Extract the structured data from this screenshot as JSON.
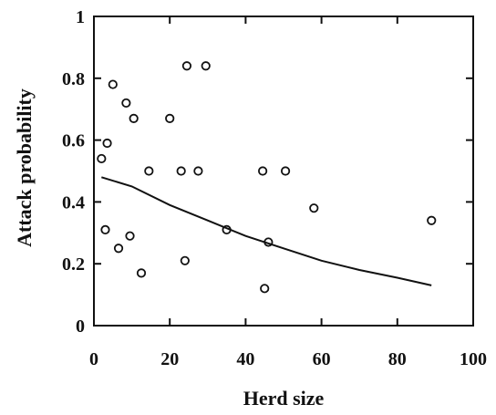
{
  "chart_data": {
    "type": "scatter",
    "title": "",
    "xlabel": "Herd size",
    "ylabel": "Attack probability",
    "xlim": [
      0,
      100
    ],
    "ylim": [
      0,
      1
    ],
    "x_ticks": [
      {
        "value": 0,
        "label": "0"
      },
      {
        "value": 20,
        "label": "20"
      },
      {
        "value": 40,
        "label": "40"
      },
      {
        "value": 60,
        "label": "60"
      },
      {
        "value": 80,
        "label": "80"
      },
      {
        "value": 100,
        "label": "100"
      }
    ],
    "y_ticks": [
      {
        "value": 0,
        "label": "0"
      },
      {
        "value": 0.2,
        "label": "0.2"
      },
      {
        "value": 0.4,
        "label": "0.4"
      },
      {
        "value": 0.6,
        "label": "0.6"
      },
      {
        "value": 0.8,
        "label": "0.8"
      },
      {
        "value": 1,
        "label": "1"
      }
    ],
    "grid": false,
    "legend": "none",
    "series": [
      {
        "kind": "points",
        "marker": "open-circle",
        "color": "#111111",
        "points": [
          {
            "x": 2,
            "y": 0.54
          },
          {
            "x": 3,
            "y": 0.31
          },
          {
            "x": 3.5,
            "y": 0.59
          },
          {
            "x": 5,
            "y": 0.78
          },
          {
            "x": 6.5,
            "y": 0.25
          },
          {
            "x": 8.5,
            "y": 0.72
          },
          {
            "x": 9.5,
            "y": 0.29
          },
          {
            "x": 10.5,
            "y": 0.67
          },
          {
            "x": 12.5,
            "y": 0.17
          },
          {
            "x": 14.5,
            "y": 0.5
          },
          {
            "x": 20,
            "y": 0.67
          },
          {
            "x": 23,
            "y": 0.5
          },
          {
            "x": 24,
            "y": 0.21
          },
          {
            "x": 24.5,
            "y": 0.84
          },
          {
            "x": 27.5,
            "y": 0.5
          },
          {
            "x": 29.5,
            "y": 0.84
          },
          {
            "x": 35,
            "y": 0.31
          },
          {
            "x": 44.5,
            "y": 0.5
          },
          {
            "x": 45,
            "y": 0.12
          },
          {
            "x": 46,
            "y": 0.27
          },
          {
            "x": 50.5,
            "y": 0.5
          },
          {
            "x": 58,
            "y": 0.38
          },
          {
            "x": 89,
            "y": 0.34
          }
        ]
      },
      {
        "kind": "line",
        "color": "#111111",
        "points": [
          {
            "x": 2,
            "y": 0.48
          },
          {
            "x": 10,
            "y": 0.45
          },
          {
            "x": 20,
            "y": 0.39
          },
          {
            "x": 30,
            "y": 0.34
          },
          {
            "x": 40,
            "y": 0.29
          },
          {
            "x": 50,
            "y": 0.25
          },
          {
            "x": 60,
            "y": 0.21
          },
          {
            "x": 70,
            "y": 0.18
          },
          {
            "x": 80,
            "y": 0.155
          },
          {
            "x": 89,
            "y": 0.13
          }
        ]
      }
    ]
  }
}
